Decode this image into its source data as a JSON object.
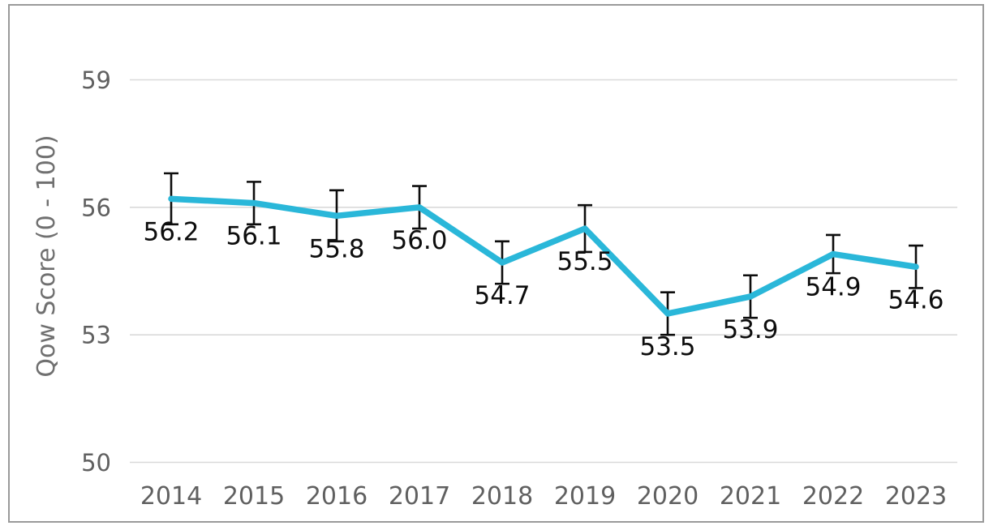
{
  "chart_data": {
    "type": "line",
    "title": "",
    "ylabel": "Qow Score (0 - 100)",
    "xlabel": "",
    "x": [
      "2014",
      "2015",
      "2016",
      "2017",
      "2018",
      "2019",
      "2020",
      "2021",
      "2022",
      "2023"
    ],
    "series": [
      {
        "name": "Qow Score",
        "values": [
          56.2,
          56.1,
          55.8,
          56.0,
          54.7,
          55.5,
          53.5,
          53.9,
          54.9,
          54.6
        ],
        "errors": [
          0.6,
          0.5,
          0.6,
          0.5,
          0.5,
          0.55,
          0.5,
          0.5,
          0.45,
          0.5
        ],
        "data_labels": [
          "56.2",
          "56.1",
          "55.8",
          "56.0",
          "54.7",
          "55.5",
          "53.5",
          "53.9",
          "54.9",
          "54.6"
        ],
        "color": "#2AB7D9"
      }
    ],
    "yticks": [
      59,
      56,
      53,
      50
    ],
    "ylim": [
      50,
      59
    ],
    "grid": true,
    "legend": "none",
    "error_bars": true
  },
  "colors": {
    "line": "#2AB7D9",
    "gridline": "#d9d9d9",
    "axis_text": "#606060",
    "axis_title_text": "#707070",
    "data_label_text": "#0d0d0d",
    "error_bar": "#0d0d0d",
    "frame_border": "#9a9a9a",
    "background": "#ffffff"
  }
}
